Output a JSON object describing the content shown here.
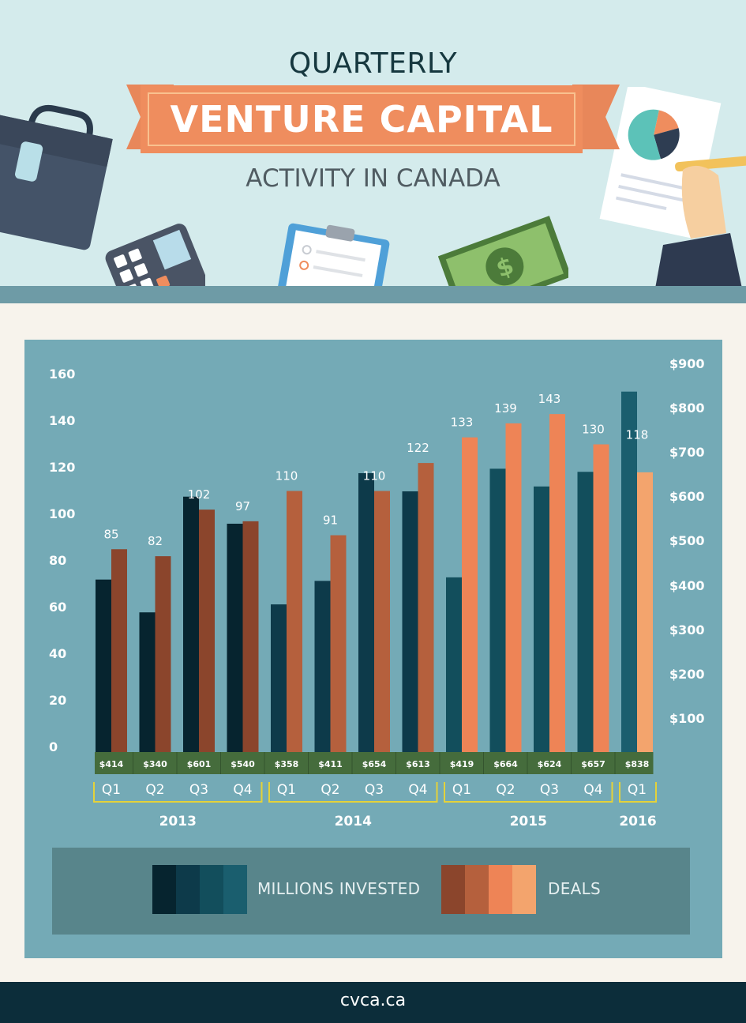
{
  "header": {
    "title_line1": "QUARTERLY",
    "title_line2": "VENTURE CAPITAL",
    "title_line3": "ACTIVITY IN CANADA"
  },
  "colors": {
    "invested_shades": [
      "#06242f",
      "#0d3a4a",
      "#124e5c",
      "#1a5e6e"
    ],
    "deals_shades": [
      "#8b452c",
      "#b5603d",
      "#ee8456",
      "#f3a46d"
    ],
    "panel": "#74aab6",
    "label_strip": "#456c3c",
    "bracket": "#e4d23a"
  },
  "chart_data": {
    "type": "bar",
    "left_axis_ticks": [
      "160",
      "140",
      "120",
      "100",
      "80",
      "60",
      "40",
      "20",
      "0"
    ],
    "right_axis_ticks": [
      "$900",
      "$800",
      "$700",
      "$600",
      "$500",
      "$400",
      "$300",
      "$200",
      "$100"
    ],
    "ylim_deals": [
      0,
      160
    ],
    "ylim_invested": [
      0,
      900
    ],
    "quarters": [
      "Q1",
      "Q2",
      "Q3",
      "Q4",
      "Q1",
      "Q2",
      "Q3",
      "Q4",
      "Q1",
      "Q2",
      "Q3",
      "Q4",
      "Q1"
    ],
    "years": [
      {
        "label": "2013",
        "start": 0,
        "end": 3
      },
      {
        "label": "2014",
        "start": 4,
        "end": 7
      },
      {
        "label": "2015",
        "start": 8,
        "end": 11
      },
      {
        "label": "2016",
        "start": 12,
        "end": 12
      }
    ],
    "series": [
      {
        "name": "MILLIONS INVESTED",
        "values": [
          414,
          340,
          601,
          540,
          358,
          411,
          654,
          613,
          419,
          664,
          624,
          657,
          838
        ],
        "labels": [
          "$414",
          "$340",
          "$601",
          "$540",
          "$358",
          "$411",
          "$654",
          "$613",
          "$419",
          "$664",
          "$624",
          "$657",
          "$838"
        ]
      },
      {
        "name": "DEALS",
        "values": [
          85,
          82,
          102,
          97,
          110,
          91,
          110,
          122,
          133,
          139,
          143,
          130,
          118
        ],
        "labels": [
          "85",
          "82",
          "102",
          "97",
          "110",
          "91",
          "110",
          "122",
          "133",
          "139",
          "143",
          "130",
          "118"
        ]
      }
    ],
    "legend": [
      "MILLIONS INVESTED",
      "DEALS"
    ],
    "grid": false
  },
  "footer": {
    "site": "cvca.ca"
  }
}
